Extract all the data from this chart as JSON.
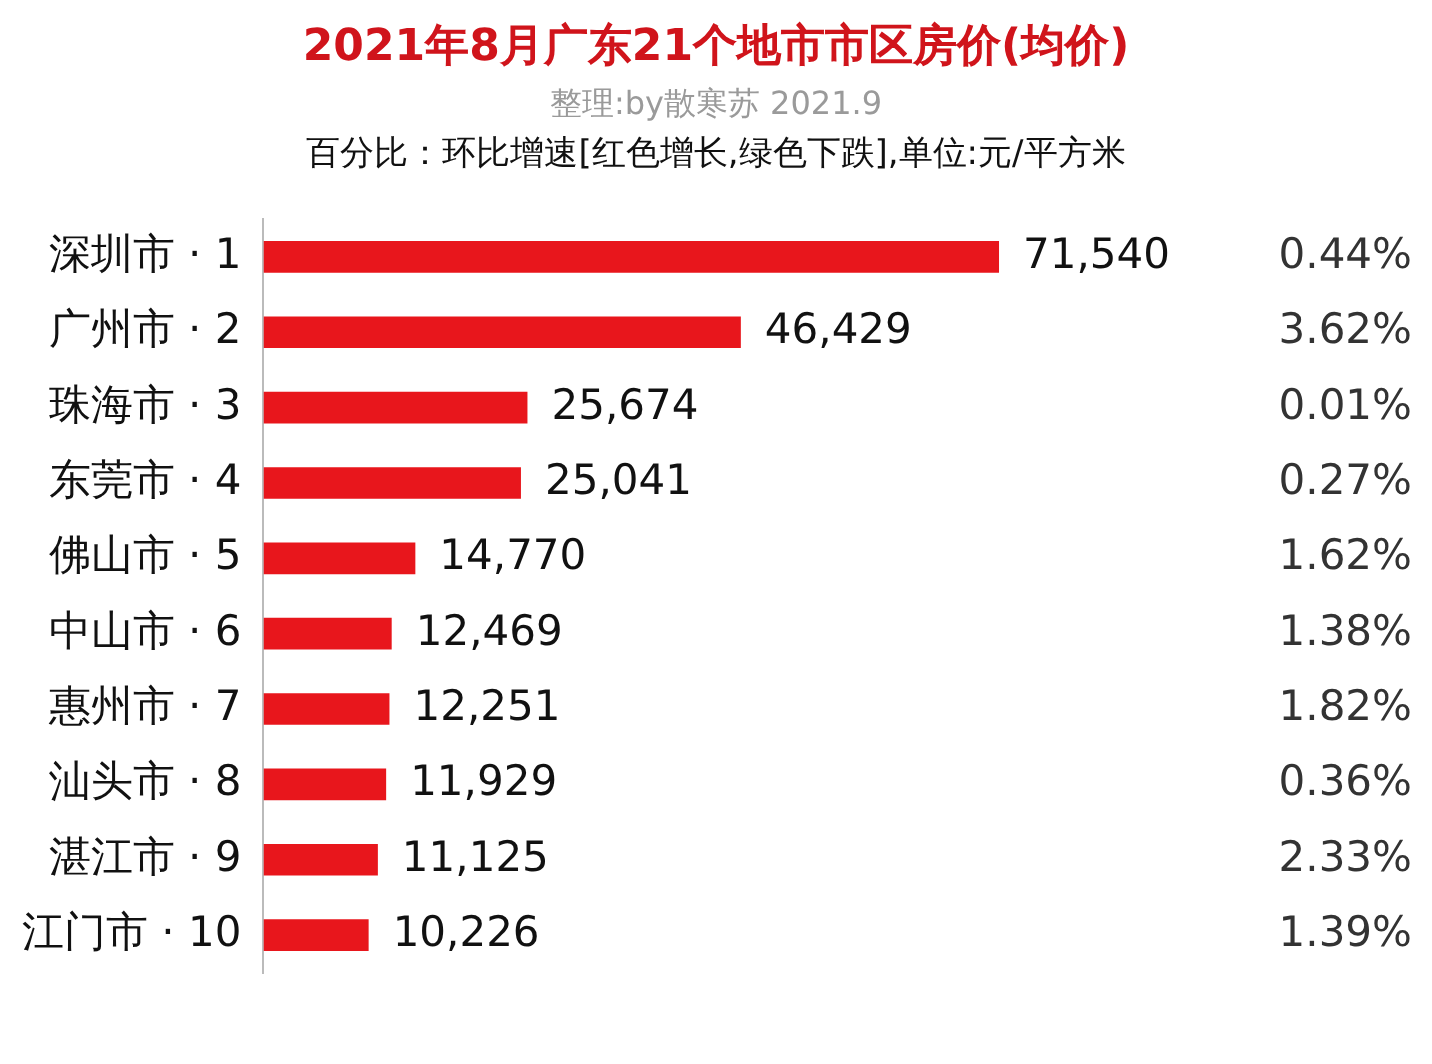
{
  "chart_data": {
    "type": "bar",
    "orientation": "horizontal",
    "title": "2021年8月广东21个地市市区房价(均价)",
    "subtitle": "整理:by散寒苏 2021.9",
    "categories": [
      "深圳市 · 1",
      "广州市 · 2",
      "珠海市 · 3",
      "东莞市 · 4",
      "佛山市 · 5",
      "中山市 · 6",
      "惠州市 · 7",
      "汕头市 · 8",
      "湛江市 · 9",
      "江门市 · 10"
    ],
    "values": [
      71540,
      46429,
      25674,
      25041,
      14770,
      12469,
      12251,
      11929,
      11125,
      10226
    ],
    "value_labels": [
      "71,540",
      "46,429",
      "25,674",
      "25,041",
      "14,770",
      "12,469",
      "12,251",
      "11,929",
      "11,125",
      "10,226"
    ],
    "color": "#e8161c",
    "annotations": [
      "百分比：环比增速[红色增长,绿色下跌],单位:元/平方米",
      "0.44%",
      "3.62%",
      "0.01%",
      "0.27%",
      "1.62%",
      "1.38%",
      "1.82%",
      "0.36%",
      "2.33%",
      "1.39%"
    ]
  }
}
